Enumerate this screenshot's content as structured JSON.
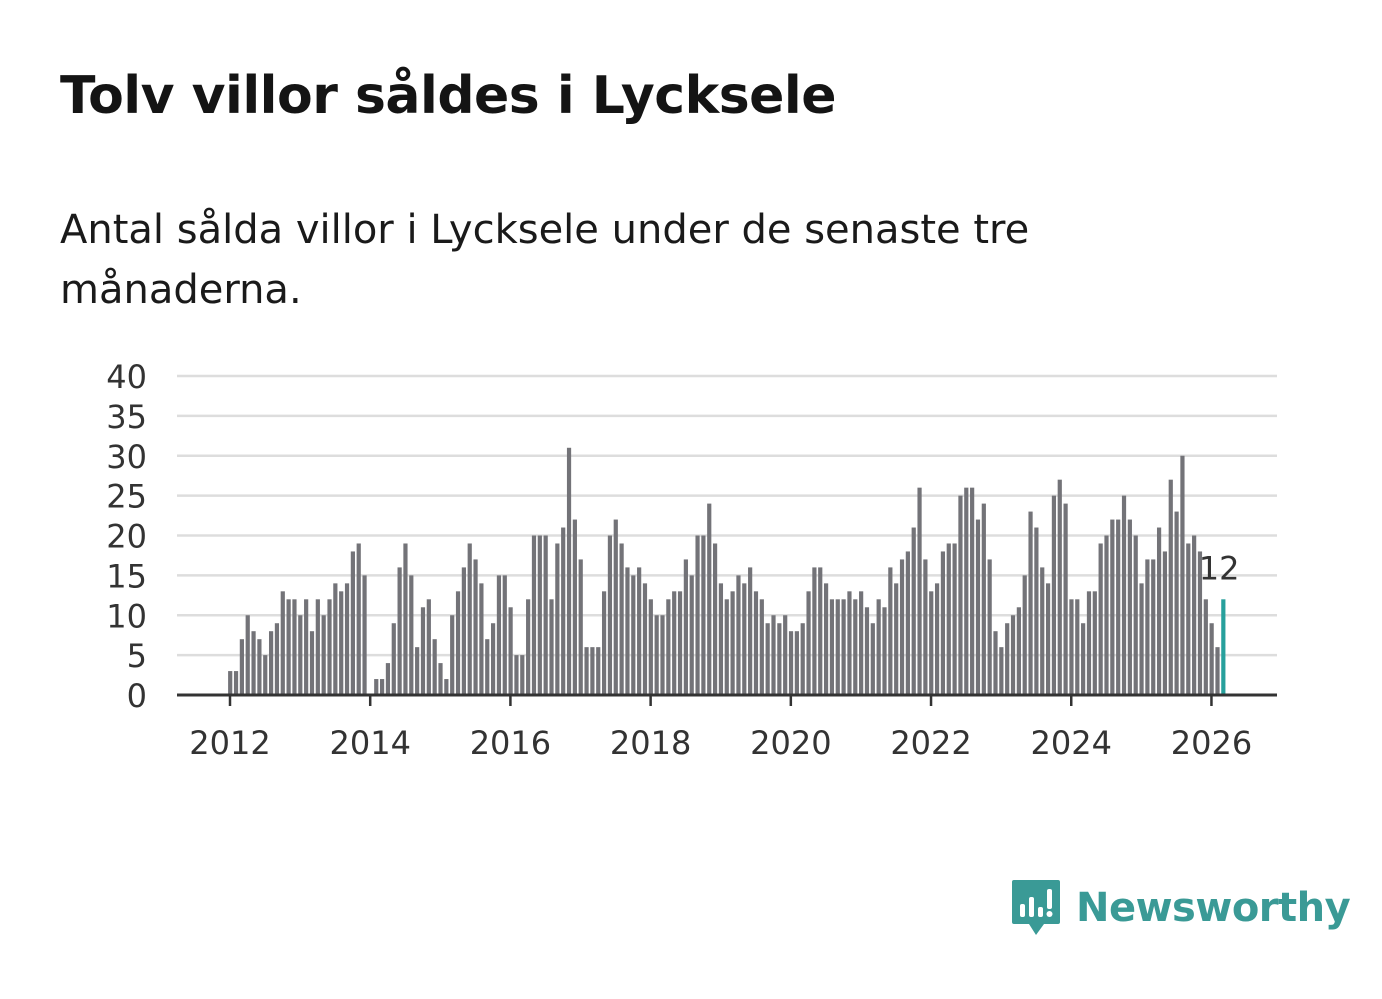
{
  "title": "Tolv villor såldes i Lycksele",
  "subtitle": "Antal sålda villor i Lycksele under de senaste tre månaderna.",
  "brand": {
    "name": "Newsworthy",
    "color": "#3a9a96",
    "icon": "newsworthy-logo-icon"
  },
  "colors": {
    "bar": "#737378",
    "highlight": "#27a09c",
    "grid": "#dddddd",
    "axis": "#333333"
  },
  "chart_data": {
    "type": "bar",
    "title": "Tolv villor såldes i Lycksele",
    "xlabel": "",
    "ylabel": "",
    "ylim": [
      0,
      40
    ],
    "yticks": [
      0,
      5,
      10,
      15,
      20,
      25,
      30,
      35,
      40
    ],
    "xticks": [
      "2012",
      "2014",
      "2016",
      "2018",
      "2020",
      "2022",
      "2024",
      "2026"
    ],
    "start": "2012-01",
    "frequency": "monthly",
    "grid": true,
    "values": [
      3,
      3,
      7,
      10,
      8,
      7,
      5,
      8,
      9,
      13,
      12,
      12,
      10,
      12,
      8,
      12,
      10,
      12,
      14,
      13,
      14,
      18,
      19,
      15,
      0,
      2,
      2,
      4,
      9,
      16,
      19,
      15,
      6,
      11,
      12,
      7,
      4,
      2,
      10,
      13,
      16,
      19,
      17,
      14,
      7,
      9,
      15,
      15,
      11,
      5,
      5,
      12,
      20,
      20,
      20,
      12,
      19,
      21,
      31,
      22,
      17,
      6,
      6,
      6,
      13,
      20,
      22,
      19,
      16,
      15,
      16,
      14,
      12,
      10,
      10,
      12,
      13,
      13,
      17,
      15,
      20,
      20,
      24,
      19,
      14,
      12,
      13,
      15,
      14,
      16,
      13,
      12,
      9,
      10,
      9,
      10,
      8,
      8,
      9,
      13,
      16,
      16,
      14,
      12,
      12,
      12,
      13,
      12,
      13,
      11,
      9,
      12,
      11,
      16,
      14,
      17,
      18,
      21,
      26,
      17,
      13,
      14,
      18,
      19,
      19,
      25,
      26,
      26,
      22,
      24,
      17,
      8,
      6,
      9,
      10,
      11,
      15,
      23,
      21,
      16,
      14,
      25,
      27,
      24,
      12,
      12,
      9,
      13,
      13,
      19,
      20,
      22,
      22,
      25,
      22,
      20,
      14,
      17,
      17,
      21,
      18,
      27,
      23,
      30,
      19,
      20,
      18,
      12,
      9,
      6,
      12
    ],
    "highlight": {
      "index": 170,
      "label": "12"
    }
  }
}
